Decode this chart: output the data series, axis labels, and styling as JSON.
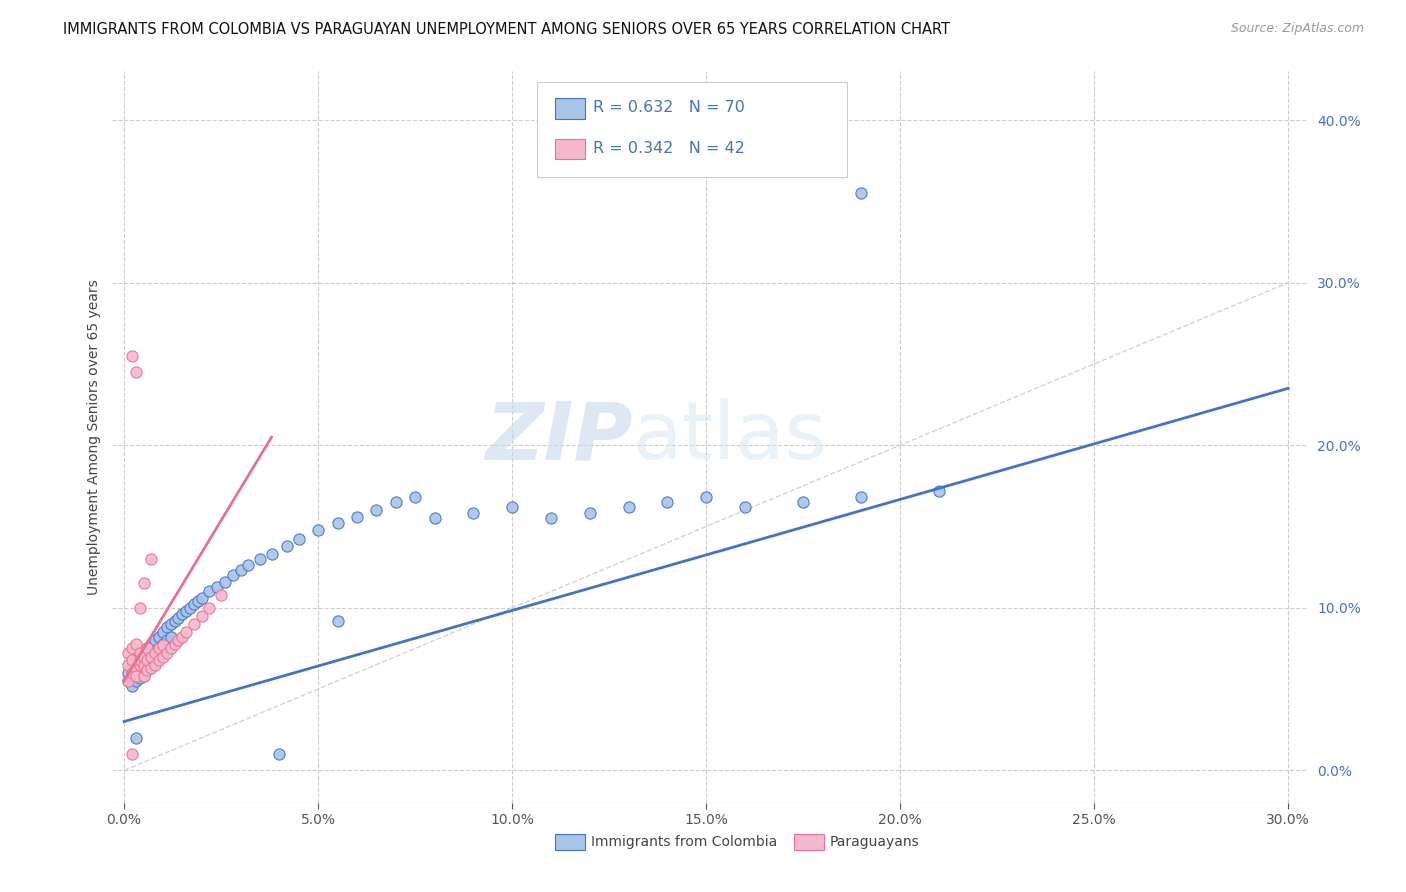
{
  "title": "IMMIGRANTS FROM COLOMBIA VS PARAGUAYAN UNEMPLOYMENT AMONG SENIORS OVER 65 YEARS CORRELATION CHART",
  "source": "Source: ZipAtlas.com",
  "ylabel": "Unemployment Among Seniors over 65 years",
  "legend_labels": [
    "Immigrants from Colombia",
    "Paraguayans"
  ],
  "R_colombia": 0.632,
  "N_colombia": 70,
  "R_paraguay": 0.342,
  "N_paraguay": 42,
  "color_colombia": "#a8c4e8",
  "color_paraguay": "#f5b8cc",
  "line_color_colombia": "#4472c4",
  "line_color_paraguay": "#e87090",
  "diagonal_color": "#c8c8c8",
  "watermark_zip": "ZIP",
  "watermark_atlas": "atlas",
  "background_color": "#ffffff",
  "xlim": [
    -0.003,
    0.305
  ],
  "ylim": [
    -0.02,
    0.43
  ],
  "x_ticks": [
    0.0,
    0.05,
    0.1,
    0.15,
    0.2,
    0.25,
    0.3
  ],
  "y_ticks": [
    0.0,
    0.1,
    0.2,
    0.3,
    0.4
  ],
  "col_line_x": [
    0.0,
    0.3
  ],
  "col_line_y": [
    0.03,
    0.235
  ],
  "par_line_x": [
    0.0,
    0.038
  ],
  "par_line_y": [
    0.055,
    0.205
  ],
  "colombia_x": [
    0.001,
    0.001,
    0.002,
    0.002,
    0.002,
    0.003,
    0.003,
    0.003,
    0.004,
    0.004,
    0.004,
    0.005,
    0.005,
    0.005,
    0.006,
    0.006,
    0.006,
    0.007,
    0.007,
    0.007,
    0.008,
    0.008,
    0.009,
    0.009,
    0.01,
    0.01,
    0.011,
    0.011,
    0.012,
    0.012,
    0.013,
    0.014,
    0.015,
    0.016,
    0.017,
    0.018,
    0.019,
    0.02,
    0.022,
    0.024,
    0.026,
    0.028,
    0.03,
    0.032,
    0.035,
    0.038,
    0.042,
    0.045,
    0.05,
    0.055,
    0.06,
    0.065,
    0.07,
    0.075,
    0.08,
    0.09,
    0.1,
    0.11,
    0.12,
    0.13,
    0.14,
    0.15,
    0.16,
    0.175,
    0.19,
    0.21,
    0.003,
    0.055,
    0.19,
    0.04
  ],
  "colombia_y": [
    0.06,
    0.055,
    0.065,
    0.058,
    0.052,
    0.068,
    0.062,
    0.055,
    0.07,
    0.063,
    0.057,
    0.072,
    0.065,
    0.058,
    0.075,
    0.068,
    0.062,
    0.078,
    0.07,
    0.064,
    0.08,
    0.073,
    0.082,
    0.075,
    0.085,
    0.078,
    0.088,
    0.08,
    0.09,
    0.082,
    0.092,
    0.094,
    0.096,
    0.098,
    0.1,
    0.102,
    0.104,
    0.106,
    0.11,
    0.113,
    0.116,
    0.12,
    0.123,
    0.126,
    0.13,
    0.133,
    0.138,
    0.142,
    0.148,
    0.152,
    0.156,
    0.16,
    0.165,
    0.168,
    0.155,
    0.158,
    0.162,
    0.155,
    0.158,
    0.162,
    0.165,
    0.168,
    0.162,
    0.165,
    0.168,
    0.172,
    0.02,
    0.092,
    0.355,
    0.01
  ],
  "paraguay_x": [
    0.001,
    0.001,
    0.001,
    0.002,
    0.002,
    0.002,
    0.003,
    0.003,
    0.003,
    0.004,
    0.004,
    0.004,
    0.005,
    0.005,
    0.005,
    0.006,
    0.006,
    0.006,
    0.007,
    0.007,
    0.008,
    0.008,
    0.009,
    0.009,
    0.01,
    0.01,
    0.011,
    0.012,
    0.013,
    0.014,
    0.015,
    0.016,
    0.018,
    0.02,
    0.022,
    0.025,
    0.005,
    0.007,
    0.002,
    0.003,
    0.004,
    0.002
  ],
  "paraguay_y": [
    0.055,
    0.072,
    0.065,
    0.06,
    0.068,
    0.075,
    0.063,
    0.058,
    0.078,
    0.065,
    0.072,
    0.068,
    0.058,
    0.065,
    0.07,
    0.062,
    0.068,
    0.075,
    0.063,
    0.07,
    0.065,
    0.072,
    0.068,
    0.075,
    0.07,
    0.077,
    0.072,
    0.075,
    0.078,
    0.08,
    0.082,
    0.085,
    0.09,
    0.095,
    0.1,
    0.108,
    0.115,
    0.13,
    0.255,
    0.245,
    0.1,
    0.01
  ]
}
